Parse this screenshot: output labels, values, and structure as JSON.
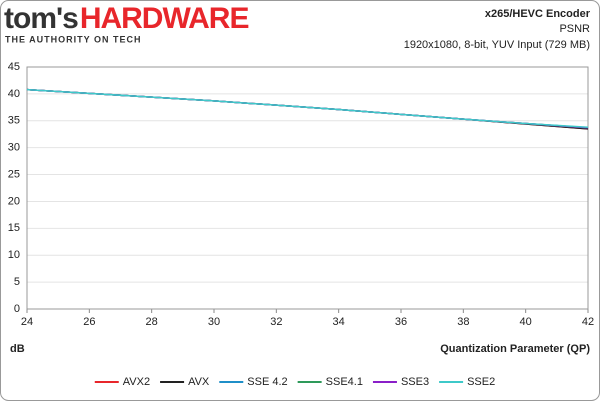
{
  "logo": {
    "brand_left": "tom's",
    "brand_right": "HARDWARE",
    "tagline": "THE AUTHORITY ON TECH"
  },
  "chart_data": {
    "type": "line",
    "title": "x265/HEVC Encoder",
    "subtitle": "PSNR",
    "note": "1920x1080, 8-bit, YUV Input (729 MB)",
    "y_label": "dB",
    "x_label": "Quantization Parameter (QP)",
    "x": [
      24,
      26,
      28,
      30,
      32,
      34,
      36,
      38,
      40,
      42
    ],
    "series": [
      {
        "name": "AVX2",
        "color": "#e8262b",
        "values": [
          40.8,
          40.1,
          39.4,
          38.7,
          37.9,
          37.1,
          36.2,
          35.3,
          34.4,
          33.5
        ]
      },
      {
        "name": "AVX",
        "color": "#222222",
        "values": [
          40.8,
          40.1,
          39.4,
          38.7,
          37.9,
          37.1,
          36.2,
          35.3,
          34.4,
          33.5
        ]
      },
      {
        "name": "SSE 4.2",
        "color": "#1f8fc8",
        "values": [
          40.8,
          40.1,
          39.4,
          38.7,
          37.9,
          37.1,
          36.2,
          35.3,
          34.5,
          33.7
        ]
      },
      {
        "name": "SSE4.1",
        "color": "#2e9a5a",
        "values": [
          40.8,
          40.1,
          39.4,
          38.7,
          37.9,
          37.1,
          36.2,
          35.3,
          34.5,
          33.7
        ]
      },
      {
        "name": "SSE3",
        "color": "#8a1fc8",
        "values": [
          40.8,
          40.1,
          39.4,
          38.7,
          37.9,
          37.1,
          36.2,
          35.3,
          34.5,
          33.7
        ]
      },
      {
        "name": "SSE2",
        "color": "#3ec9c9",
        "values": [
          40.8,
          40.1,
          39.4,
          38.7,
          37.9,
          37.1,
          36.2,
          35.3,
          34.5,
          33.8
        ]
      }
    ],
    "xlim": [
      24,
      42
    ],
    "xticks": [
      24,
      26,
      28,
      30,
      32,
      34,
      36,
      38,
      40,
      42
    ],
    "ylim": [
      0,
      45
    ],
    "yticks": [
      0,
      5,
      10,
      15,
      20,
      25,
      30,
      35,
      40,
      45
    ],
    "grid": true,
    "legend": "bottom"
  }
}
